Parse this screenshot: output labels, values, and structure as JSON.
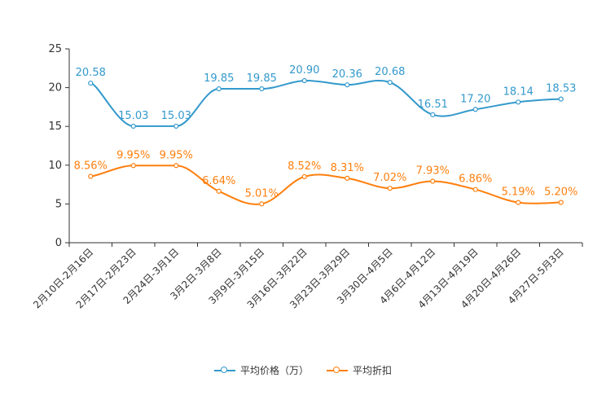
{
  "chart_data": {
    "type": "line",
    "categories": [
      "2月10日-2月16日",
      "2月17日-2月23日",
      "2月24日-3月1日",
      "3月2日-3月8日",
      "3月9日-3月15日",
      "3月16日-3月22日",
      "3月23日-3月29日",
      "3月30日-4月5日",
      "4月6日-4月12日",
      "4月13日-4月19日",
      "4月20日-4月26日",
      "4月27日-5月3日"
    ],
    "series": [
      {
        "name": "平均价格（万）",
        "color": "#3399cc",
        "values": [
          20.58,
          15.03,
          15.03,
          19.85,
          19.85,
          20.9,
          20.36,
          20.68,
          16.51,
          17.2,
          18.14,
          18.53
        ],
        "labels": [
          "20.58",
          "15.03",
          "15.03",
          "19.85",
          "19.85",
          "20.90",
          "20.36",
          "20.68",
          "16.51",
          "17.20",
          "18.14",
          "18.53"
        ]
      },
      {
        "name": "平均折扣",
        "color": "#ff7f0e",
        "values": [
          8.56,
          9.95,
          9.95,
          6.64,
          5.01,
          8.52,
          8.31,
          7.02,
          7.93,
          6.86,
          5.19,
          5.2
        ],
        "labels": [
          "8.56%",
          "9.95%",
          "9.95%",
          "6.64%",
          "5.01%",
          "8.52%",
          "8.31%",
          "7.02%",
          "7.93%",
          "6.86%",
          "5.19%",
          "5.20%"
        ]
      }
    ],
    "ylim": [
      0,
      25
    ],
    "yticks": [
      0,
      5,
      10,
      15,
      20,
      25
    ],
    "ytick_labels": [
      "0",
      "5",
      "10",
      "15",
      "20",
      "25"
    ],
    "legend_position": "bottom-center",
    "grid": false
  },
  "legend": {
    "price_label": "平均价格（万）",
    "discount_label": "平均折扣",
    "price_color": "#3399cc",
    "discount_color": "#ff7f0e"
  }
}
